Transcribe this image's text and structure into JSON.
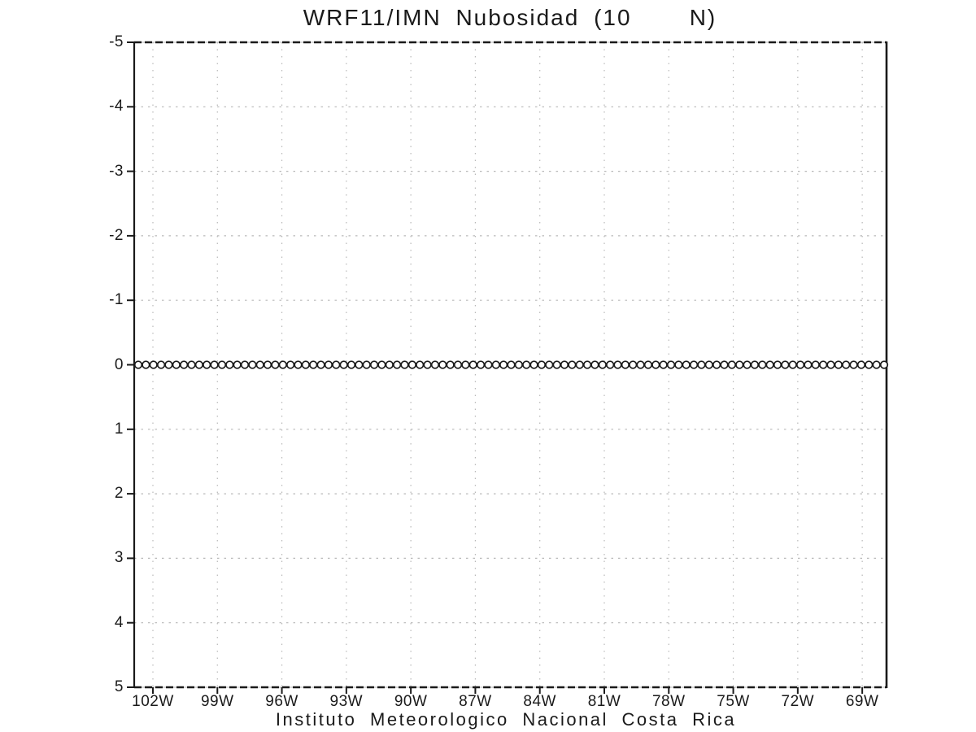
{
  "chart_data": {
    "type": "line",
    "title": "WRF11/IMN Nubosidad (10    N)",
    "caption": "Instituto Meteorologico Nacional Costa Rica",
    "marker": "open-circle",
    "grid": {
      "on": true,
      "style": "dotted"
    },
    "y_axis": {
      "tick_labels": [
        "-5",
        "-4",
        "-3",
        "-2",
        "-1",
        "0",
        "1",
        "2",
        "3",
        "4",
        "5"
      ],
      "tick_values": [
        -5,
        -4,
        -3,
        -2,
        -1,
        0,
        1,
        2,
        3,
        4,
        5
      ],
      "lim": [
        -5,
        5
      ],
      "inverted": true
    },
    "x_axis": {
      "tick_labels": [
        "102W",
        "99W",
        "96W",
        "93W",
        "90W",
        "87W",
        "84W",
        "81W",
        "78W",
        "75W",
        "72W",
        "69W"
      ],
      "tick_lons_west": [
        102,
        99,
        96,
        93,
        90,
        87,
        84,
        81,
        78,
        75,
        72,
        69
      ],
      "lim_west_deg": [
        102.87,
        67.87
      ]
    },
    "series": [
      {
        "name": "Nubosidad 10N",
        "y_constant": 0,
        "n_points": 99
      }
    ],
    "colors": {
      "foreground": "#1a1a1a",
      "grid": "#b8b8b8",
      "background": "#ffffff",
      "marker_fill": "#ffffff"
    }
  }
}
